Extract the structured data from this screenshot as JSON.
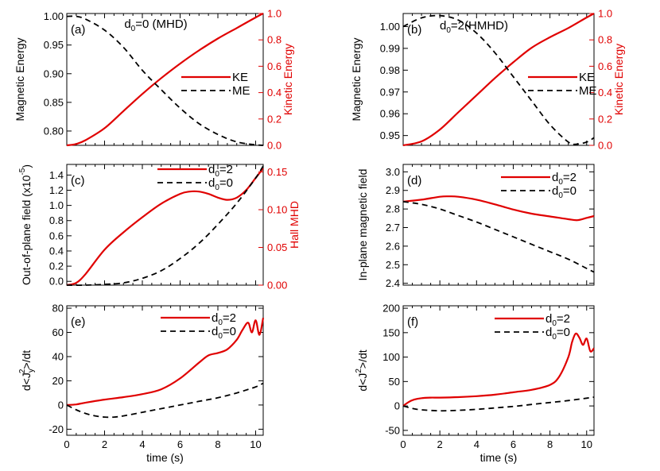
{
  "colors": {
    "red": "#e00000",
    "black": "#000000"
  },
  "chart_data": [
    {
      "id": "a",
      "type": "line",
      "panel_label": "(a)",
      "title_main": "d",
      "title_sub": "0",
      "title_rest": "=0 (MHD)",
      "xlim": [
        0,
        10.4
      ],
      "ylabel_left": "Magnetic Energy",
      "ylabel_right": "Kinetic Energy",
      "ylim_left": [
        0.775,
        1.005
      ],
      "ylim_right": [
        0,
        1.0
      ],
      "yticks_left": [
        "1.00",
        "0.95",
        "0.90",
        "0.85",
        "0.80"
      ],
      "yticks_left_vals": [
        1.0,
        0.95,
        0.9,
        0.85,
        0.8
      ],
      "yticks_right": [
        "1.0",
        "0.8",
        "0.6",
        "0.4",
        "0.2",
        "0.0"
      ],
      "yticks_right_vals": [
        1.0,
        0.8,
        0.6,
        0.4,
        0.2,
        0.0
      ],
      "xticks": [],
      "xticks_vals": [],
      "legend": [
        {
          "main": "KE",
          "sub": "",
          "rest": "",
          "style": "solid"
        },
        {
          "main": "ME",
          "sub": "",
          "rest": "",
          "style": "dash"
        }
      ],
      "series": [
        {
          "name": "KE",
          "axis": "right",
          "style": "solid",
          "x": [
            0,
            0.5,
            1,
            2,
            3,
            4,
            5,
            6,
            7,
            8,
            9,
            10,
            10.4
          ],
          "y": [
            0,
            0.01,
            0.04,
            0.13,
            0.26,
            0.39,
            0.51,
            0.62,
            0.72,
            0.81,
            0.89,
            0.97,
            1.0
          ]
        },
        {
          "name": "ME",
          "axis": "left",
          "style": "dash",
          "x": [
            0,
            0.5,
            1,
            2,
            3,
            4,
            5,
            6,
            7,
            8,
            9,
            10,
            10.4
          ],
          "y": [
            1.0,
            1.0,
            0.995,
            0.976,
            0.946,
            0.906,
            0.872,
            0.84,
            0.813,
            0.794,
            0.781,
            0.776,
            0.775
          ]
        }
      ]
    },
    {
      "id": "b",
      "type": "line",
      "panel_label": "(b)",
      "title_main": "d",
      "title_sub": "0",
      "title_rest": "=2(HMHD)",
      "xlim": [
        0,
        10.4
      ],
      "ylabel_left": "Magnetic Energy",
      "ylabel_right": "Kinetic Energy",
      "ylim_left": [
        0.9455,
        1.006
      ],
      "ylim_right": [
        0,
        1.0
      ],
      "yticks_left": [
        "1.00",
        "0.99",
        "0.98",
        "0.97",
        "0.96",
        "0.95"
      ],
      "yticks_left_vals": [
        1.0,
        0.99,
        0.98,
        0.97,
        0.96,
        0.95
      ],
      "yticks_right": [
        "1.0",
        "0.8",
        "0.6",
        "0.4",
        "0.2",
        "0.0"
      ],
      "yticks_right_vals": [
        1.0,
        0.8,
        0.6,
        0.4,
        0.2,
        0.0
      ],
      "xticks": [],
      "xticks_vals": [],
      "legend": [
        {
          "main": "KE",
          "sub": "",
          "rest": "",
          "style": "solid"
        },
        {
          "main": "ME",
          "sub": "",
          "rest": "",
          "style": "dash"
        }
      ],
      "series": [
        {
          "name": "KE",
          "axis": "right",
          "style": "solid",
          "x": [
            0,
            1,
            2,
            3,
            4,
            5,
            6,
            7,
            8,
            9,
            10,
            10.4
          ],
          "y": [
            0,
            0.03,
            0.12,
            0.25,
            0.38,
            0.51,
            0.63,
            0.74,
            0.82,
            0.89,
            0.97,
            1.0
          ]
        },
        {
          "name": "ME",
          "axis": "left",
          "style": "dash",
          "x": [
            0,
            1,
            2,
            3,
            4,
            5,
            6,
            7,
            8,
            9,
            9.4,
            10,
            10.4
          ],
          "y": [
            1.0,
            1.004,
            1.005,
            1.003,
            0.997,
            0.988,
            0.977,
            0.966,
            0.955,
            0.947,
            0.946,
            0.947,
            0.949
          ]
        }
      ]
    },
    {
      "id": "c",
      "type": "line",
      "panel_label": "(c)",
      "title_main": "",
      "title_sub": "",
      "title_rest": "",
      "xlim": [
        0,
        10.4
      ],
      "ylabel_left": "Out-of-plane field (x10",
      "ylabel_left_sup": "-5",
      "ylabel_left_end": ")",
      "ylabel_right": "Hall MHD",
      "ylim_left": [
        -0.05,
        1.54
      ],
      "ylim_right": [
        0,
        0.16
      ],
      "yticks_left": [
        "1.4",
        "1.2",
        "1.0",
        "0.8",
        "0.6",
        "0.4",
        "0.2",
        "0.0"
      ],
      "yticks_left_vals": [
        1.4,
        1.2,
        1.0,
        0.8,
        0.6,
        0.4,
        0.2,
        0.0
      ],
      "yticks_right": [
        "0.15",
        "0.10",
        "0.05",
        "0.00"
      ],
      "yticks_right_vals": [
        0.15,
        0.1,
        0.05,
        0.0
      ],
      "xticks": [],
      "xticks_vals": [],
      "legend": [
        {
          "main": "d",
          "sub": "0",
          "rest": "=2",
          "style": "solid"
        },
        {
          "main": "d",
          "sub": "0",
          "rest": "=0",
          "style": "dash"
        }
      ],
      "series": [
        {
          "name": "d0=2",
          "axis": "right",
          "style": "solid",
          "x": [
            0,
            0.5,
            1,
            2,
            3,
            4,
            5,
            6,
            6.5,
            7,
            7.5,
            8,
            8.5,
            9,
            9.5,
            10,
            10.4
          ],
          "y": [
            0,
            0.003,
            0.015,
            0.047,
            0.07,
            0.09,
            0.108,
            0.121,
            0.124,
            0.124,
            0.121,
            0.116,
            0.113,
            0.116,
            0.126,
            0.142,
            0.155
          ]
        },
        {
          "name": "d0=0",
          "axis": "left",
          "style": "dash",
          "x": [
            0,
            1,
            2,
            3,
            4,
            5,
            6,
            7,
            8,
            9,
            10,
            10.4
          ],
          "y": [
            -0.05,
            -0.05,
            -0.04,
            -0.02,
            0.04,
            0.14,
            0.3,
            0.5,
            0.75,
            1.03,
            1.36,
            1.52
          ]
        }
      ]
    },
    {
      "id": "d",
      "type": "line",
      "panel_label": "(d)",
      "title_main": "",
      "title_sub": "",
      "title_rest": "",
      "xlim": [
        0,
        10.4
      ],
      "ylabel_left": "In-plane magnetic field",
      "ylim_left": [
        2.39,
        3.04
      ],
      "yticks_left": [
        "3.0",
        "2.9",
        "2.8",
        "2.7",
        "2.6",
        "2.5",
        "2.4"
      ],
      "yticks_left_vals": [
        3.0,
        2.9,
        2.8,
        2.7,
        2.6,
        2.5,
        2.4
      ],
      "xticks": [],
      "xticks_vals": [],
      "legend": [
        {
          "main": "d",
          "sub": "0",
          "rest": "=2",
          "style": "solid"
        },
        {
          "main": "d",
          "sub": "0",
          "rest": "=0",
          "style": "dash"
        }
      ],
      "series": [
        {
          "name": "d0=2",
          "axis": "left",
          "style": "solid",
          "x": [
            0,
            1,
            2,
            2.5,
            3,
            4,
            5,
            6,
            7,
            8,
            9,
            9.5,
            10,
            10.4
          ],
          "y": [
            2.84,
            2.85,
            2.866,
            2.868,
            2.866,
            2.85,
            2.825,
            2.797,
            2.775,
            2.76,
            2.745,
            2.74,
            2.752,
            2.762
          ]
        },
        {
          "name": "d0=0",
          "axis": "left",
          "style": "dash",
          "x": [
            0,
            1,
            2,
            3,
            4,
            5,
            6,
            7,
            8,
            9,
            10,
            10.4
          ],
          "y": [
            2.84,
            2.825,
            2.8,
            2.765,
            2.73,
            2.69,
            2.65,
            2.61,
            2.57,
            2.53,
            2.48,
            2.46
          ]
        }
      ]
    },
    {
      "id": "e",
      "type": "line",
      "panel_label": "(e)",
      "title_main": "",
      "title_sub": "",
      "title_rest": "",
      "xlim": [
        0,
        10.4
      ],
      "xlabel": "time (s)",
      "ylabel_left": "d<J",
      "ylabel_left_sub": "y",
      "ylabel_left_sup": "2",
      "ylabel_left_end": ">/dt",
      "ylim_left": [
        -25,
        82
      ],
      "yticks_left": [
        "80",
        "60",
        "40",
        "20",
        "0",
        "-20"
      ],
      "yticks_left_vals": [
        80,
        60,
        40,
        20,
        0,
        -20
      ],
      "xticks": [
        "0",
        "2",
        "4",
        "6",
        "8",
        "10"
      ],
      "xticks_vals": [
        0,
        2,
        4,
        6,
        8,
        10
      ],
      "legend": [
        {
          "main": "d",
          "sub": "0",
          "rest": "=2",
          "style": "solid"
        },
        {
          "main": "d",
          "sub": "0",
          "rest": "=0",
          "style": "dash"
        }
      ],
      "series": [
        {
          "name": "d0=2",
          "axis": "left",
          "style": "solid",
          "x": [
            0,
            0.5,
            1,
            2,
            3,
            4,
            5,
            6,
            7,
            7.5,
            8,
            8.5,
            9,
            9.3,
            9.6,
            9.8,
            10,
            10.2,
            10.4
          ],
          "y": [
            0,
            0.5,
            2,
            4.5,
            6.5,
            9,
            13,
            22,
            35,
            41,
            43,
            46,
            54,
            62,
            68,
            60,
            70,
            58,
            72
          ]
        },
        {
          "name": "d0=0",
          "axis": "left",
          "style": "dash",
          "x": [
            0,
            0.5,
            1,
            1.5,
            2,
            2.5,
            3,
            4,
            5,
            6,
            7,
            8,
            9,
            10,
            10.4
          ],
          "y": [
            0,
            -4,
            -7,
            -9,
            -10,
            -10,
            -9,
            -6,
            -3,
            0,
            3,
            6,
            10,
            15,
            18
          ]
        }
      ]
    },
    {
      "id": "f",
      "type": "line",
      "panel_label": "(f)",
      "title_main": "",
      "title_sub": "",
      "title_rest": "",
      "xlim": [
        0,
        10.4
      ],
      "xlabel": "time (s)",
      "ylabel_left": "d<J",
      "ylabel_left_sub": "",
      "ylabel_left_sup": "2",
      "ylabel_left_end": ">/dt",
      "ylim_left": [
        -60,
        205
      ],
      "yticks_left": [
        "200",
        "150",
        "100",
        "50",
        "0",
        "-50"
      ],
      "yticks_left_vals": [
        200,
        150,
        100,
        50,
        0,
        -50
      ],
      "xticks": [
        "0",
        "2",
        "4",
        "6",
        "8",
        "10"
      ],
      "xticks_vals": [
        0,
        2,
        4,
        6,
        8,
        10
      ],
      "legend": [
        {
          "main": "d",
          "sub": "0",
          "rest": "=2",
          "style": "solid"
        },
        {
          "main": "d",
          "sub": "0",
          "rest": "=0",
          "style": "dash"
        }
      ],
      "series": [
        {
          "name": "d0=2",
          "axis": "left",
          "style": "solid",
          "x": [
            0,
            0.3,
            0.6,
            1,
            1.5,
            2,
            3,
            4,
            5,
            6,
            7,
            8,
            8.5,
            9,
            9.2,
            9.4,
            9.6,
            9.8,
            10,
            10.2,
            10.4
          ],
          "y": [
            0,
            8,
            13,
            16,
            17,
            17,
            18,
            20,
            23,
            28,
            33,
            43,
            60,
            100,
            130,
            148,
            140,
            125,
            138,
            112,
            118
          ]
        },
        {
          "name": "d0=0",
          "axis": "left",
          "style": "dash",
          "x": [
            0,
            0.5,
            1,
            2,
            3,
            4,
            5,
            6,
            7,
            8,
            9,
            10,
            10.4
          ],
          "y": [
            0,
            -5,
            -8,
            -10,
            -9,
            -7,
            -4,
            -1,
            3,
            7,
            11,
            16,
            18
          ]
        }
      ]
    }
  ]
}
